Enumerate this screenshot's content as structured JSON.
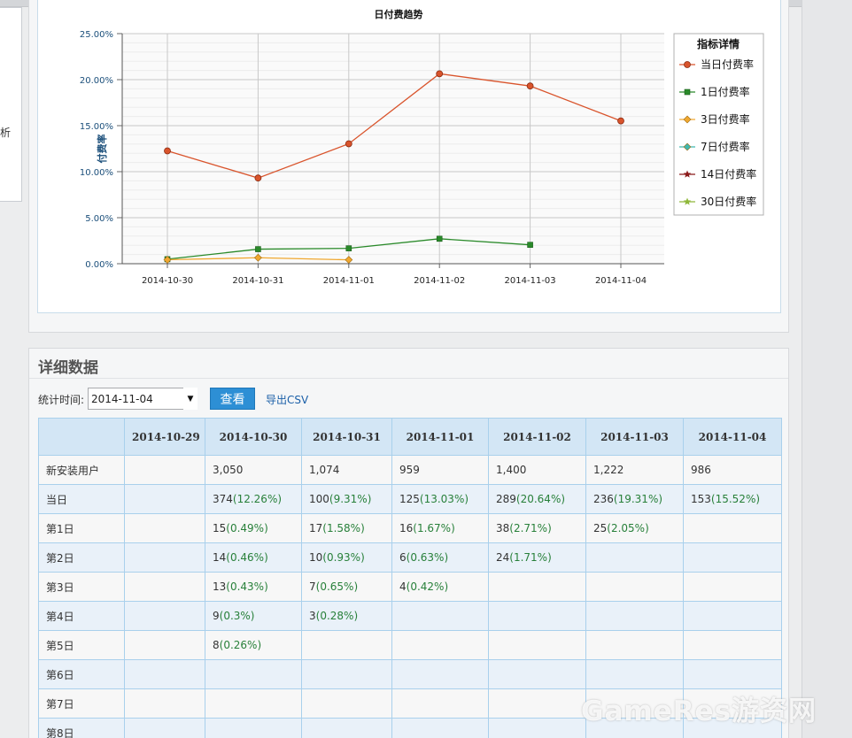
{
  "left_panel": {
    "fragment": "析"
  },
  "chart_data": {
    "type": "line",
    "title": "日付费趋势",
    "ylabel": "付费率",
    "xlabel": "",
    "categories": [
      "2014-10-30",
      "2014-10-31",
      "2014-11-01",
      "2014-11-02",
      "2014-11-03",
      "2014-11-04"
    ],
    "y_ticks": [
      "0.00%",
      "5.00%",
      "10.00%",
      "15.00%",
      "20.00%",
      "25.00%"
    ],
    "ylim": [
      0,
      25
    ],
    "legend_title": "指标详情",
    "legend_position": "right",
    "series": [
      {
        "name": "当日付费率",
        "color": "#d9542c",
        "marker": "circle",
        "values": [
          12.26,
          9.31,
          13.03,
          20.64,
          19.31,
          15.52
        ]
      },
      {
        "name": "1日付费率",
        "color": "#2a8a2a",
        "marker": "square",
        "values": [
          0.49,
          1.58,
          1.67,
          2.71,
          2.05,
          null
        ]
      },
      {
        "name": "3日付费率",
        "color": "#f0a830",
        "marker": "diamond",
        "values": [
          0.43,
          0.65,
          0.42,
          null,
          null,
          null
        ]
      },
      {
        "name": "7日付费率",
        "color": "#3fb8b0",
        "marker": "diamond",
        "values": [
          null,
          null,
          null,
          null,
          null,
          null
        ]
      },
      {
        "name": "14日付费率",
        "color": "#8b1a1a",
        "marker": "star",
        "values": [
          null,
          null,
          null,
          null,
          null,
          null
        ]
      },
      {
        "name": "30日付费率",
        "color": "#8fb83a",
        "marker": "star",
        "values": [
          null,
          null,
          null,
          null,
          null,
          null
        ]
      }
    ],
    "grid": true
  },
  "detail": {
    "title": "详细数据",
    "filter_label": "统计时间:",
    "date_value": "2014-11-04",
    "view_button": "查看",
    "export_link": "导出CSV",
    "columns": [
      "",
      "2014-10-29",
      "2014-10-30",
      "2014-10-31",
      "2014-11-01",
      "2014-11-02",
      "2014-11-03",
      "2014-11-04"
    ],
    "rows": [
      {
        "label": "新安装用户",
        "cells": [
          [
            "",
            ""
          ],
          [
            "3,050",
            ""
          ],
          [
            "1,074",
            ""
          ],
          [
            "959",
            ""
          ],
          [
            "1,400",
            ""
          ],
          [
            "1,222",
            ""
          ],
          [
            "986",
            ""
          ]
        ]
      },
      {
        "label": "当日",
        "cells": [
          [
            "",
            ""
          ],
          [
            "374",
            "(12.26%)"
          ],
          [
            "100",
            "(9.31%)"
          ],
          [
            "125",
            "(13.03%)"
          ],
          [
            "289",
            "(20.64%)"
          ],
          [
            "236",
            "(19.31%)"
          ],
          [
            "153",
            "(15.52%)"
          ]
        ]
      },
      {
        "label": "第1日",
        "cells": [
          [
            "",
            ""
          ],
          [
            "15",
            "(0.49%)"
          ],
          [
            "17",
            "(1.58%)"
          ],
          [
            "16",
            "(1.67%)"
          ],
          [
            "38",
            "(2.71%)"
          ],
          [
            "25",
            "(2.05%)"
          ],
          [
            "",
            ""
          ]
        ]
      },
      {
        "label": "第2日",
        "cells": [
          [
            "",
            ""
          ],
          [
            "14",
            "(0.46%)"
          ],
          [
            "10",
            "(0.93%)"
          ],
          [
            "6",
            "(0.63%)"
          ],
          [
            "24",
            "(1.71%)"
          ],
          [
            "",
            ""
          ],
          [
            "",
            ""
          ]
        ]
      },
      {
        "label": "第3日",
        "cells": [
          [
            "",
            ""
          ],
          [
            "13",
            "(0.43%)"
          ],
          [
            "7",
            "(0.65%)"
          ],
          [
            "4",
            "(0.42%)"
          ],
          [
            "",
            ""
          ],
          [
            "",
            ""
          ],
          [
            "",
            ""
          ]
        ]
      },
      {
        "label": "第4日",
        "cells": [
          [
            "",
            ""
          ],
          [
            "9",
            "(0.3%)"
          ],
          [
            "3",
            "(0.28%)"
          ],
          [
            "",
            ""
          ],
          [
            "",
            ""
          ],
          [
            "",
            ""
          ],
          [
            "",
            ""
          ]
        ]
      },
      {
        "label": "第5日",
        "cells": [
          [
            "",
            ""
          ],
          [
            "8",
            "(0.26%)"
          ],
          [
            "",
            ""
          ],
          [
            "",
            ""
          ],
          [
            "",
            ""
          ],
          [
            "",
            ""
          ],
          [
            "",
            ""
          ]
        ]
      },
      {
        "label": "第6日",
        "cells": [
          [
            "",
            ""
          ],
          [
            "",
            ""
          ],
          [
            "",
            ""
          ],
          [
            "",
            ""
          ],
          [
            "",
            ""
          ],
          [
            "",
            ""
          ],
          [
            "",
            ""
          ]
        ]
      },
      {
        "label": "第7日",
        "cells": [
          [
            "",
            ""
          ],
          [
            "",
            ""
          ],
          [
            "",
            ""
          ],
          [
            "",
            ""
          ],
          [
            "",
            ""
          ],
          [
            "",
            ""
          ],
          [
            "",
            ""
          ]
        ]
      },
      {
        "label": "第8日",
        "cells": [
          [
            "",
            ""
          ],
          [
            "",
            ""
          ],
          [
            "",
            ""
          ],
          [
            "",
            ""
          ],
          [
            "",
            ""
          ],
          [
            "",
            ""
          ],
          [
            "",
            ""
          ]
        ]
      }
    ]
  },
  "watermark": "GameRes游资网"
}
